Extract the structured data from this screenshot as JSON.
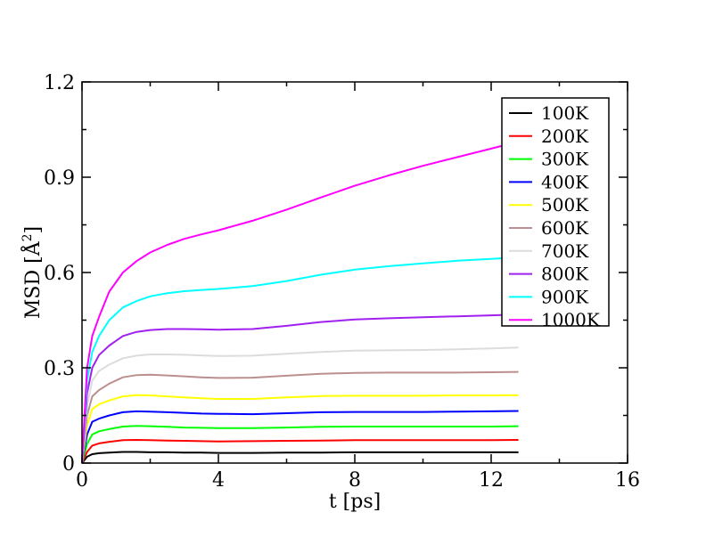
{
  "chart_data": {
    "type": "line",
    "xlabel": "t [ps]",
    "ylabel_main": "MSD [",
    "ylabel_unit": "Å",
    "ylabel_sup": "2",
    "ylabel_close": "]",
    "xlim": [
      0,
      16
    ],
    "ylim": [
      0,
      1.2
    ],
    "xticks": [
      0,
      4,
      8,
      12,
      16
    ],
    "yticks": [
      0,
      0.3,
      0.6,
      0.9,
      1.2
    ],
    "xtick_labels": [
      "0",
      "4",
      "8",
      "12",
      "16"
    ],
    "ytick_labels": [
      "0",
      "0.3",
      "0.6",
      "0.9",
      "1.2"
    ],
    "grid": false,
    "legend_position": "top-right",
    "x": [
      0,
      0.15,
      0.3,
      0.5,
      0.8,
      1.2,
      1.6,
      2,
      2.5,
      3,
      3.5,
      4,
      5,
      6,
      7,
      8,
      9,
      10,
      11,
      12,
      12.8
    ],
    "series": [
      {
        "name": "100K",
        "color": "#000000",
        "values": [
          0,
          0.02,
          0.028,
          0.031,
          0.033,
          0.035,
          0.035,
          0.034,
          0.034,
          0.033,
          0.033,
          0.032,
          0.032,
          0.033,
          0.033,
          0.034,
          0.034,
          0.034,
          0.034,
          0.034,
          0.034
        ]
      },
      {
        "name": "200K",
        "color": "#ff0000",
        "values": [
          0,
          0.035,
          0.055,
          0.062,
          0.067,
          0.072,
          0.073,
          0.072,
          0.071,
          0.07,
          0.069,
          0.068,
          0.069,
          0.07,
          0.071,
          0.072,
          0.072,
          0.072,
          0.072,
          0.072,
          0.073
        ]
      },
      {
        "name": "300K",
        "color": "#00ff00",
        "values": [
          0,
          0.06,
          0.09,
          0.1,
          0.107,
          0.115,
          0.117,
          0.116,
          0.114,
          0.112,
          0.111,
          0.11,
          0.11,
          0.112,
          0.114,
          0.115,
          0.115,
          0.115,
          0.115,
          0.115,
          0.116
        ]
      },
      {
        "name": "400K",
        "color": "#0000ff",
        "values": [
          0,
          0.09,
          0.13,
          0.14,
          0.15,
          0.16,
          0.163,
          0.162,
          0.16,
          0.158,
          0.156,
          0.155,
          0.154,
          0.157,
          0.16,
          0.161,
          0.161,
          0.161,
          0.162,
          0.163,
          0.164
        ]
      },
      {
        "name": "500K",
        "color": "#ffff00",
        "values": [
          0,
          0.12,
          0.17,
          0.185,
          0.197,
          0.21,
          0.214,
          0.213,
          0.21,
          0.207,
          0.204,
          0.202,
          0.202,
          0.207,
          0.211,
          0.212,
          0.212,
          0.212,
          0.213,
          0.213,
          0.214
        ]
      },
      {
        "name": "600K",
        "color": "#bc8f8f",
        "values": [
          0,
          0.15,
          0.21,
          0.23,
          0.25,
          0.27,
          0.277,
          0.278,
          0.276,
          0.273,
          0.27,
          0.268,
          0.269,
          0.275,
          0.281,
          0.284,
          0.285,
          0.285,
          0.285,
          0.286,
          0.287
        ]
      },
      {
        "name": "700K",
        "color": "#dcdcdc",
        "values": [
          0,
          0.18,
          0.26,
          0.29,
          0.31,
          0.33,
          0.338,
          0.342,
          0.342,
          0.341,
          0.339,
          0.337,
          0.338,
          0.344,
          0.35,
          0.354,
          0.355,
          0.356,
          0.358,
          0.361,
          0.364
        ]
      },
      {
        "name": "800K",
        "color": "#a020f0",
        "values": [
          0,
          0.22,
          0.3,
          0.34,
          0.37,
          0.4,
          0.413,
          0.419,
          0.422,
          0.422,
          0.421,
          0.42,
          0.422,
          0.432,
          0.444,
          0.452,
          0.456,
          0.459,
          0.462,
          0.465,
          0.468
        ]
      },
      {
        "name": "900K",
        "color": "#00ffff",
        "values": [
          0,
          0.26,
          0.35,
          0.4,
          0.45,
          0.49,
          0.51,
          0.525,
          0.535,
          0.541,
          0.545,
          0.548,
          0.557,
          0.573,
          0.593,
          0.609,
          0.62,
          0.629,
          0.637,
          0.643,
          0.648
        ]
      },
      {
        "name": "1000K",
        "color": "#ff00ff",
        "values": [
          0,
          0.3,
          0.4,
          0.46,
          0.54,
          0.6,
          0.636,
          0.663,
          0.687,
          0.706,
          0.72,
          0.733,
          0.763,
          0.798,
          0.836,
          0.873,
          0.906,
          0.936,
          0.963,
          0.99,
          1.012
        ]
      }
    ]
  }
}
